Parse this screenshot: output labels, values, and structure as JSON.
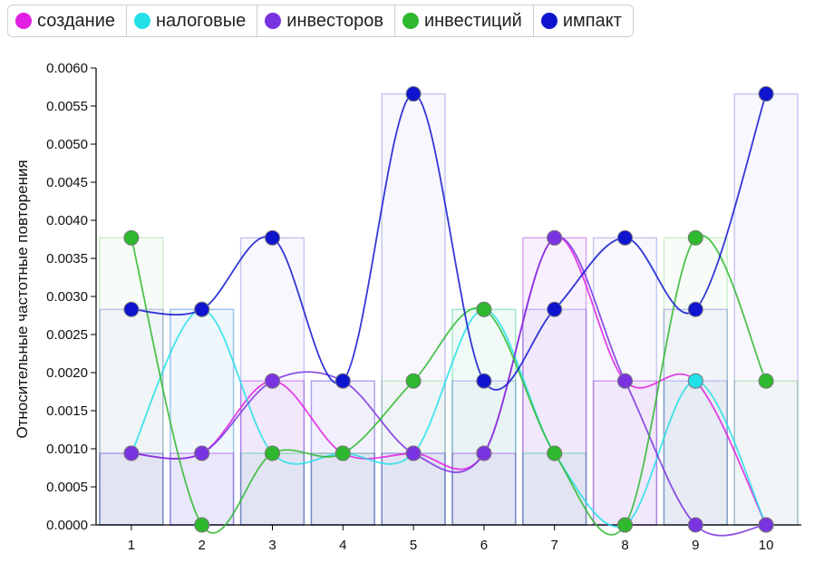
{
  "chart_data": {
    "type": "line",
    "categories": [
      "1",
      "2",
      "3",
      "4",
      "5",
      "6",
      "7",
      "8",
      "9",
      "10"
    ],
    "ylabel": "Относительные частотные повторения",
    "ylim": [
      0,
      0.006
    ],
    "yticks": [
      "0.0000",
      "0.0005",
      "0.0010",
      "0.0015",
      "0.0020",
      "0.0025",
      "0.0030",
      "0.0035",
      "0.0040",
      "0.0045",
      "0.0050",
      "0.0055",
      "0.0060"
    ],
    "legend_position": "top",
    "series": [
      {
        "name": "создание",
        "color": "#e21ee2",
        "values": [
          0.00094,
          0.00094,
          0.00189,
          0.00094,
          0.00094,
          0.00094,
          0.00377,
          0.00189,
          0.00189,
          0.0
        ]
      },
      {
        "name": "налоговые",
        "color": "#22e0e8",
        "values": [
          0.00094,
          0.00283,
          0.00094,
          0.00094,
          0.00094,
          0.00283,
          0.00094,
          0.0,
          0.00189,
          0.0
        ]
      },
      {
        "name": "инвесторов",
        "color": "#7a33e0",
        "values": [
          0.00094,
          0.00094,
          0.00189,
          0.00189,
          0.00094,
          0.00094,
          0.00377,
          0.00189,
          0.0,
          0.0
        ]
      },
      {
        "name": "инвестиций",
        "color": "#2eb82e",
        "values": [
          0.00377,
          0.0,
          0.00094,
          0.00094,
          0.00189,
          0.00283,
          0.00094,
          0.0,
          0.00377,
          0.00189
        ]
      },
      {
        "name": "импакт",
        "color": "#0f15cf",
        "values": [
          0.00283,
          0.00283,
          0.00377,
          0.00189,
          0.00566,
          0.00189,
          0.00283,
          0.00377,
          0.00283,
          0.00566
        ]
      }
    ]
  }
}
